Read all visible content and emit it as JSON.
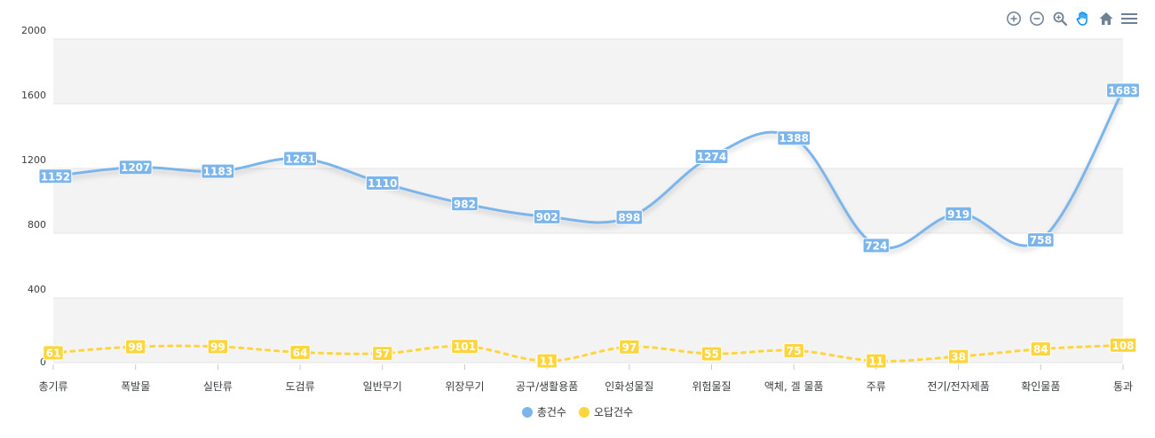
{
  "chart_data": {
    "type": "line",
    "categories": [
      "총기류",
      "폭발물",
      "실탄류",
      "도검류",
      "일반무기",
      "위장무기",
      "공구/생활용품",
      "인화성물질",
      "위험물질",
      "액체, 겔 물품",
      "주류",
      "전기/전자제품",
      "확인물품",
      "통과"
    ],
    "series": [
      {
        "name": "총건수",
        "color": "#7CB5EC",
        "dashed": false,
        "values": [
          1152,
          1207,
          1183,
          1261,
          1110,
          982,
          902,
          898,
          1274,
          1388,
          724,
          919,
          758,
          1683
        ]
      },
      {
        "name": "오답건수",
        "color": "#FFD53E",
        "dashed": true,
        "values": [
          61,
          98,
          99,
          64,
          57,
          101,
          11,
          97,
          55,
          75,
          11,
          38,
          84,
          108
        ]
      }
    ],
    "yticks": [
      0,
      400,
      800,
      1200,
      1600,
      2000
    ],
    "ylim": [
      0,
      2000
    ],
    "grid": true,
    "legend_position": "bottom-center",
    "data_labels": true
  },
  "toolbar": {
    "icons": [
      "zoom-in-icon",
      "zoom-out-icon",
      "magnifier-icon",
      "pan-hand-icon",
      "home-icon",
      "menu-icon"
    ],
    "active_color": "#008FFB",
    "icon_color": "#6E8192"
  }
}
